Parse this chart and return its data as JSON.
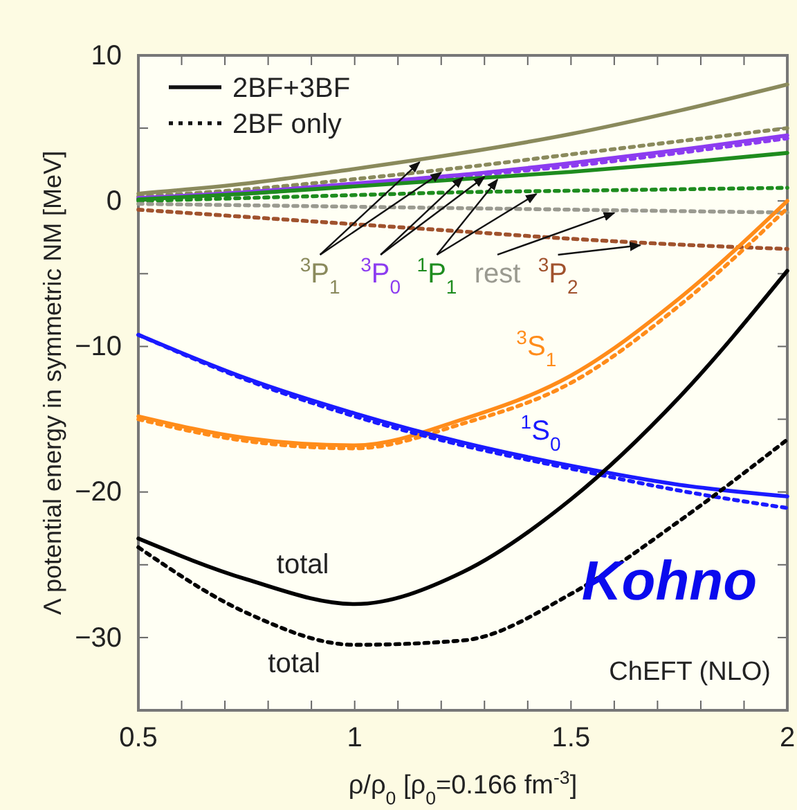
{
  "chart_data": {
    "type": "line",
    "xlabel": "ρ/ρ$_{0}$  [ρ$_{0}$=0.166 fm$^{-3}$]",
    "ylabel": "Λ  potential energy in symmetric NM [MeV]",
    "xlim": [
      0.5,
      2
    ],
    "ylim": [
      -35,
      10
    ],
    "xticks": [
      0.5,
      {
        "value": 0.6,
        "label": null
      },
      {
        "value": 0.7,
        "label": null
      },
      {
        "value": 0.8,
        "label": null
      },
      {
        "value": 0.9,
        "label": null
      },
      1,
      {
        "value": 1.1,
        "label": null
      },
      {
        "value": 1.2,
        "label": null
      },
      {
        "value": 1.3,
        "label": null
      },
      {
        "value": 1.4,
        "label": null
      },
      1.5,
      {
        "value": 1.6,
        "label": null
      },
      {
        "value": 1.7,
        "label": null
      },
      {
        "value": 1.8,
        "label": null
      },
      {
        "value": 1.9,
        "label": null
      },
      2
    ],
    "yticks": [
      {
        "value": -35,
        "label": null
      },
      -30,
      {
        "value": -25,
        "label": null
      },
      -20,
      {
        "value": -15,
        "label": null
      },
      -10,
      {
        "value": -5,
        "label": null
      },
      0,
      {
        "value": 5,
        "label": null
      },
      10
    ],
    "x": [
      0.5,
      0.75,
      1,
      1.25,
      1.5,
      1.75,
      2
    ],
    "series": [
      {
        "name": "$^{3}$P$_{1}$",
        "color": "#8a8a5c",
        "line_style": "solid",
        "values": [
          0.5,
          1.2,
          2.2,
          3.3,
          4.6,
          6.2,
          8.0
        ]
      },
      {
        "color": "#8a8a5c",
        "line_style": "dotted",
        "values": [
          0.3,
          0.8,
          1.5,
          2.3,
          3.2,
          4.1,
          5.0
        ]
      },
      {
        "name": "$^{3}$P$_{0}$",
        "color": "#8c3cf0",
        "line_style": "solid",
        "values": [
          0.2,
          0.6,
          1.2,
          1.8,
          2.6,
          3.5,
          4.5
        ]
      },
      {
        "color": "#8c3cf0",
        "line_style": "dotted",
        "values": [
          0.1,
          0.5,
          1.1,
          1.7,
          2.4,
          3.3,
          4.3
        ]
      },
      {
        "name": "$^{1}$P$_{1}$",
        "color": "#1e8c1e",
        "line_style": "solid",
        "values": [
          0.1,
          0.5,
          1.0,
          1.5,
          2.0,
          2.6,
          3.3
        ]
      },
      {
        "color": "#1e8c1e",
        "line_style": "dotted",
        "values": [
          0.0,
          0.2,
          0.4,
          0.6,
          0.7,
          0.8,
          0.9
        ]
      },
      {
        "name": "rest",
        "color": "#9a9a90",
        "line_style": "dotted",
        "values": [
          -0.2,
          -0.3,
          -0.4,
          -0.5,
          -0.6,
          -0.7,
          -0.8
        ]
      },
      {
        "name": "$^{3}$P$_{2}$",
        "color": "#a0522d",
        "line_style": "dotted",
        "values": [
          -0.6,
          -1.1,
          -1.6,
          -2.1,
          -2.6,
          -3.0,
          -3.3
        ]
      },
      {
        "name": "$^{3}$S$_{1}$",
        "color": "#ff8c1a",
        "line_style": "solid",
        "values": [
          -14.8,
          -16.3,
          -16.8,
          -15.0,
          -12.0,
          -6.7,
          0.0
        ]
      },
      {
        "color": "#ff8c1a",
        "line_style": "dotted",
        "values": [
          -15.0,
          -16.5,
          -17.0,
          -15.3,
          -12.5,
          -7.2,
          -0.5
        ]
      },
      {
        "name": "$^{1}$S$_{0}$",
        "color": "#1a1aff",
        "line_style": "solid",
        "values": [
          -9.2,
          -12.2,
          -14.6,
          -16.6,
          -18.2,
          -19.5,
          -20.3
        ]
      },
      {
        "color": "#1a1aff",
        "line_style": "dotted",
        "values": [
          -9.2,
          -12.3,
          -14.8,
          -16.8,
          -18.4,
          -19.9,
          -21.1
        ]
      },
      {
        "name": "total",
        "color": "#000000",
        "line_style": "solid",
        "values": [
          -23.2,
          -26.0,
          -27.7,
          -25.5,
          -20.5,
          -13.5,
          -4.8
        ]
      },
      {
        "name": "total",
        "color": "#000000",
        "line_style": "dotted",
        "values": [
          -23.8,
          -28.3,
          -30.5,
          -30.2,
          -27.0,
          -22.0,
          -16.4
        ]
      }
    ],
    "annotations": [
      "2BF+3BF",
      "2BF only",
      "ChEFT (NLO)",
      "Kohno"
    ]
  }
}
